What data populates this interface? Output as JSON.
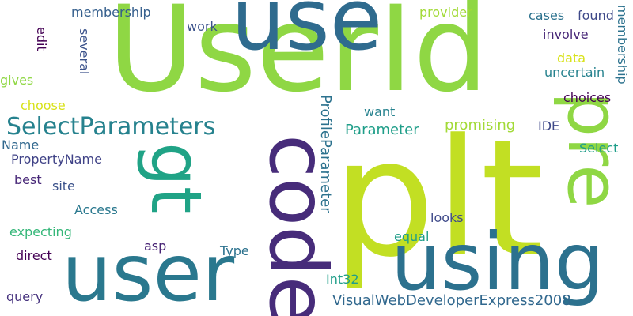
{
  "words": [
    {
      "text": "UserId",
      "color": "#8fd744"
    },
    {
      "text": "plt",
      "color": "#c2df23"
    },
    {
      "text": "use",
      "color": "#2f6b8e"
    },
    {
      "text": "using",
      "color": "#2c718e"
    },
    {
      "text": "user",
      "color": "#2a788e"
    },
    {
      "text": "code",
      "color": "#472c7a"
    },
    {
      "text": "pre",
      "color": "#8fd744"
    },
    {
      "text": "gt",
      "color": "#20a386"
    },
    {
      "text": "SelectParameters",
      "color": "#26828e"
    },
    {
      "text": "VisualWebDeveloperExpress2008",
      "color": "#31688e"
    },
    {
      "text": "ProfileParameter",
      "color": "#2c728e"
    },
    {
      "text": "Parameter",
      "color": "#1f9e89"
    },
    {
      "text": "promising",
      "color": "#a2da37"
    },
    {
      "text": "PropertyName",
      "color": "#404387"
    },
    {
      "text": "membership",
      "color": "#355f8d"
    },
    {
      "text": "membership",
      "color": "#2c728e"
    },
    {
      "text": "Name",
      "color": "#31688e"
    },
    {
      "text": "best",
      "color": "#482878"
    },
    {
      "text": "site",
      "color": "#3b528b"
    },
    {
      "text": "Access",
      "color": "#2a788e"
    },
    {
      "text": "expecting",
      "color": "#35b779"
    },
    {
      "text": "direct",
      "color": "#440154"
    },
    {
      "text": "query",
      "color": "#46327e"
    },
    {
      "text": "asp",
      "color": "#482475"
    },
    {
      "text": "Type",
      "color": "#2c728e"
    },
    {
      "text": "equal",
      "color": "#1f9e89"
    },
    {
      "text": "Int32",
      "color": "#1f9e89"
    },
    {
      "text": "looks",
      "color": "#3e4989"
    },
    {
      "text": "want",
      "color": "#26828e"
    },
    {
      "text": "IDE",
      "color": "#3e4989"
    },
    {
      "text": "Select",
      "color": "#1f9e89"
    },
    {
      "text": "choices",
      "color": "#440154"
    },
    {
      "text": "uncertain",
      "color": "#26828e"
    },
    {
      "text": "data",
      "color": "#d8e219"
    },
    {
      "text": "involve",
      "color": "#482878"
    },
    {
      "text": "cases",
      "color": "#2c728e"
    },
    {
      "text": "found",
      "color": "#3e4989"
    },
    {
      "text": "provider",
      "color": "#a2da37"
    },
    {
      "text": "work",
      "color": "#3b528b"
    },
    {
      "text": "edit",
      "color": "#440154"
    },
    {
      "text": "several",
      "color": "#3b528b"
    },
    {
      "text": "gives",
      "color": "#8fd744"
    },
    {
      "text": "choose",
      "color": "#d8e219"
    }
  ]
}
